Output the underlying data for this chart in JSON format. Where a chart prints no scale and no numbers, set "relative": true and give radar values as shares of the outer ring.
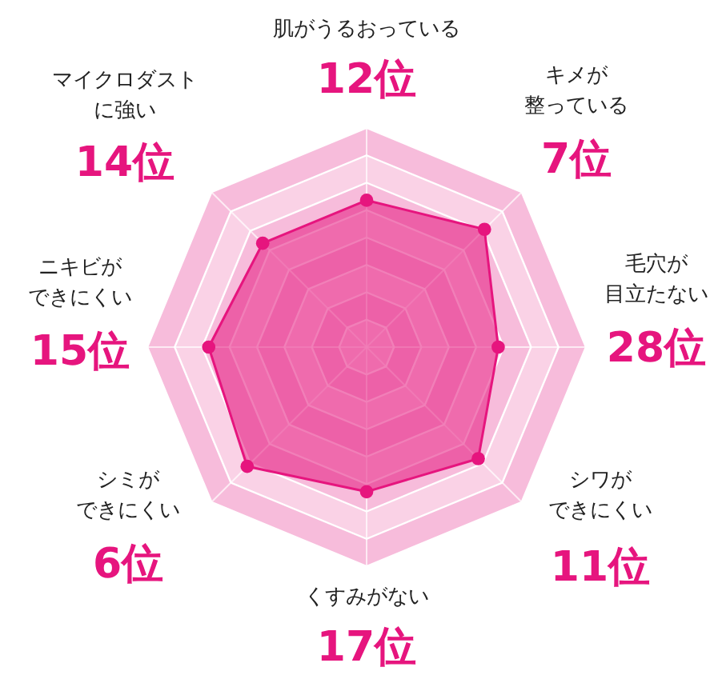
{
  "chart_data": {
    "type": "radar",
    "relative": true,
    "grid": true,
    "marker": "circle",
    "categories": [
      "肌がうるおっている",
      "キメが整っている",
      "毛穴が目立たない",
      "シワができにくい",
      "くすみがない",
      "シミができにくい",
      "ニキビができにくい",
      "マイクロダストに強い"
    ],
    "series": [
      {
        "color": "#e6157e",
        "values": [
          0.67,
          0.76,
          0.6,
          0.72,
          0.66,
          0.77,
          0.72,
          0.67
        ]
      }
    ],
    "annotations": [
      "12位",
      "7位",
      "28位",
      "11位",
      "17位",
      "6位",
      "15位",
      "14位"
    ]
  }
}
